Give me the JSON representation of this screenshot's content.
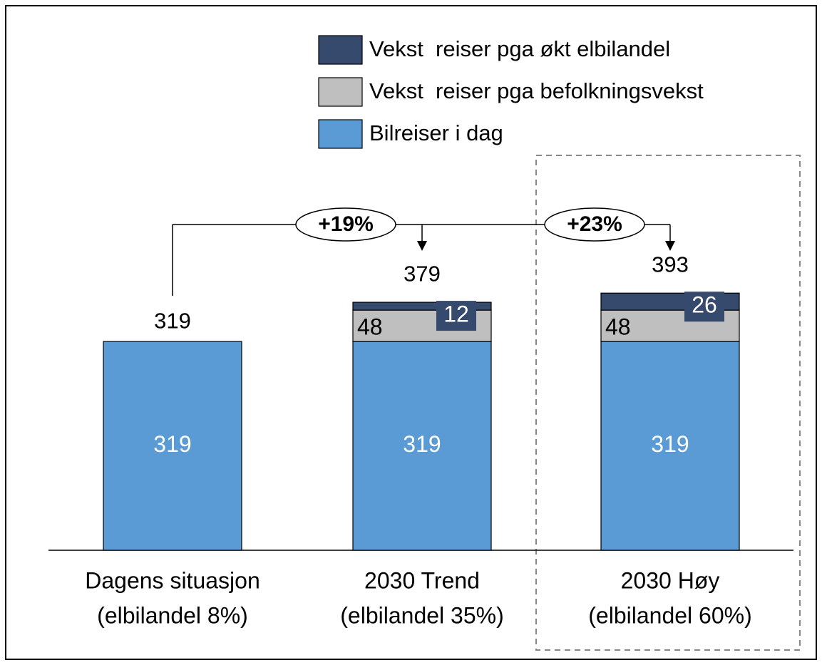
{
  "chart_data": {
    "type": "bar",
    "stacked": true,
    "categories": [
      [
        "Dagens situasjon",
        "(elbilandel 8%)"
      ],
      [
        "2030  Trend",
        "(elbilandel 35%)"
      ],
      [
        "2030 Høy",
        "(elbilandel 60%)"
      ]
    ],
    "series": [
      {
        "name": "Bilreiser i dag",
        "color": "#5b9bd5",
        "values": [
          319,
          319,
          319
        ]
      },
      {
        "name": "Vekst  reiser pga befolkningsvekst",
        "color": "#bfbfbf",
        "values": [
          null,
          48,
          48
        ]
      },
      {
        "name": "Vekst  reiser pga økt elbilandel",
        "color": "#354a6d",
        "values": [
          null,
          12,
          26
        ]
      }
    ],
    "totals": [
      319,
      379,
      393
    ],
    "annotations": [
      "+19%",
      "+23%"
    ]
  }
}
